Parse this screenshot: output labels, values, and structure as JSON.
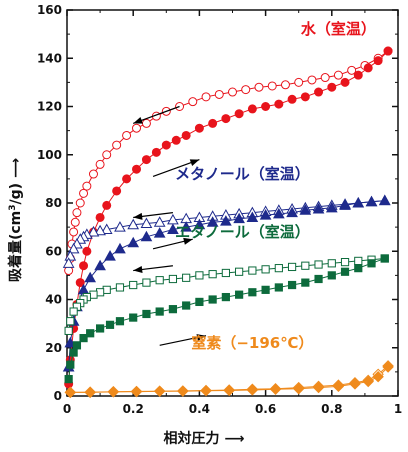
{
  "chart_data": {
    "type": "scatter",
    "xlabel": "相対圧力",
    "ylabel_main": "吸着量",
    "ylabel_unit_pre": "(cm",
    "ylabel_unit_sup": "3",
    "ylabel_unit_post": "/g)",
    "xlim": [
      0,
      1
    ],
    "ylim": [
      0,
      160
    ],
    "xticks": [
      0,
      0.2,
      0.4,
      0.6,
      0.8,
      1
    ],
    "xtick_labels": [
      "0",
      "0.2",
      "0.4",
      "0.6",
      "0.8",
      "1"
    ],
    "yticks": [
      0,
      20,
      40,
      60,
      80,
      100,
      120,
      140,
      160
    ],
    "ytick_labels": [
      "0",
      "20",
      "40",
      "60",
      "80",
      "100",
      "120",
      "140",
      "160"
    ],
    "grid": false,
    "series": [
      {
        "name": "水（室温）",
        "color": "#e8141c",
        "marker": "circle",
        "adsorption_x": [
          0.005,
          0.01,
          0.02,
          0.03,
          0.04,
          0.05,
          0.06,
          0.08,
          0.1,
          0.12,
          0.15,
          0.18,
          0.21,
          0.24,
          0.27,
          0.3,
          0.33,
          0.36,
          0.4,
          0.44,
          0.48,
          0.52,
          0.56,
          0.6,
          0.64,
          0.68,
          0.72,
          0.76,
          0.8,
          0.84,
          0.88,
          0.91,
          0.94,
          0.97
        ],
        "adsorption_y": [
          5,
          15,
          28,
          38,
          47,
          54,
          60,
          68,
          74,
          79,
          85,
          90,
          94,
          98,
          101,
          104,
          106,
          108,
          111,
          113,
          115,
          117,
          119,
          120,
          121,
          123,
          124,
          126,
          128,
          130,
          133,
          136,
          139,
          143
        ],
        "desorption_x": [
          0.97,
          0.94,
          0.9,
          0.86,
          0.82,
          0.78,
          0.74,
          0.7,
          0.66,
          0.62,
          0.58,
          0.54,
          0.5,
          0.46,
          0.42,
          0.38,
          0.34,
          0.3,
          0.27,
          0.24,
          0.21,
          0.18,
          0.15,
          0.12,
          0.1,
          0.08,
          0.06,
          0.05,
          0.04,
          0.03,
          0.025,
          0.02,
          0.015,
          0.01,
          0.005
        ],
        "desorption_y": [
          143,
          140,
          137,
          135,
          133,
          132,
          131,
          130,
          129,
          128.5,
          128,
          127,
          126,
          125,
          124,
          122,
          120,
          118,
          116,
          113,
          111,
          108,
          104,
          100,
          96,
          92,
          87,
          84,
          80,
          76,
          72,
          68,
          63,
          57,
          52
        ]
      },
      {
        "name": "メタノール（室温）",
        "color": "#1e2a8c",
        "marker": "triangle",
        "adsorption_x": [
          0.005,
          0.01,
          0.02,
          0.03,
          0.05,
          0.07,
          0.1,
          0.13,
          0.16,
          0.2,
          0.24,
          0.28,
          0.32,
          0.36,
          0.4,
          0.44,
          0.48,
          0.52,
          0.56,
          0.6,
          0.64,
          0.68,
          0.72,
          0.76,
          0.8,
          0.84,
          0.88,
          0.92,
          0.96
        ],
        "adsorption_y": [
          12,
          22,
          31,
          37,
          44,
          49,
          54,
          58,
          61,
          63.5,
          66,
          67.5,
          69,
          70,
          71,
          72,
          72.5,
          73.5,
          74,
          75,
          75.5,
          76,
          77,
          77.5,
          78,
          79,
          80,
          80.5,
          81
        ],
        "desorption_x": [
          0.96,
          0.92,
          0.88,
          0.84,
          0.8,
          0.76,
          0.72,
          0.68,
          0.64,
          0.6,
          0.56,
          0.52,
          0.48,
          0.44,
          0.4,
          0.36,
          0.32,
          0.28,
          0.24,
          0.2,
          0.16,
          0.12,
          0.1,
          0.08,
          0.06,
          0.05,
          0.04,
          0.03,
          0.02,
          0.01,
          0.005
        ],
        "desorption_y": [
          81,
          80.5,
          80,
          79.5,
          79,
          78.5,
          78,
          77.5,
          77,
          76.5,
          76,
          75.5,
          75,
          74.5,
          74,
          73.5,
          73,
          72,
          71.5,
          71,
          70,
          69,
          68.5,
          68,
          67,
          66,
          65,
          63,
          61,
          58,
          55
        ]
      },
      {
        "name": "エタノール（室温）",
        "color": "#0d6b3c",
        "marker": "square",
        "adsorption_x": [
          0.005,
          0.01,
          0.02,
          0.03,
          0.05,
          0.07,
          0.1,
          0.13,
          0.16,
          0.2,
          0.24,
          0.28,
          0.32,
          0.36,
          0.4,
          0.44,
          0.48,
          0.52,
          0.56,
          0.6,
          0.64,
          0.68,
          0.72,
          0.76,
          0.8,
          0.84,
          0.88,
          0.92,
          0.96
        ],
        "adsorption_y": [
          7,
          13,
          18,
          21,
          24,
          26,
          28,
          29.5,
          31,
          32.5,
          34,
          35,
          36,
          37.5,
          39,
          40,
          41,
          42,
          43,
          44,
          45,
          46,
          47,
          48.5,
          50,
          51.5,
          53,
          55,
          57
        ],
        "desorption_x": [
          0.96,
          0.92,
          0.88,
          0.84,
          0.8,
          0.76,
          0.72,
          0.68,
          0.64,
          0.6,
          0.56,
          0.52,
          0.48,
          0.44,
          0.4,
          0.36,
          0.32,
          0.28,
          0.24,
          0.2,
          0.16,
          0.12,
          0.1,
          0.08,
          0.06,
          0.05,
          0.04,
          0.03,
          0.02,
          0.01,
          0.005
        ],
        "desorption_y": [
          57,
          56.5,
          56,
          55.5,
          55,
          54.5,
          54,
          53.5,
          53,
          52.5,
          52,
          51.5,
          51,
          50.5,
          50,
          49,
          48.5,
          48,
          47,
          46,
          45,
          44,
          43,
          42,
          41,
          40,
          38.5,
          37,
          35,
          31,
          27
        ]
      },
      {
        "name": "窒素（−196℃）",
        "color": "#ef8a1c",
        "marker": "diamond",
        "adsorption_x": [
          0.01,
          0.07,
          0.14,
          0.21,
          0.28,
          0.35,
          0.42,
          0.49,
          0.56,
          0.63,
          0.7,
          0.76,
          0.82,
          0.87,
          0.91,
          0.94,
          0.97
        ],
        "adsorption_y": [
          1.5,
          1.5,
          1.7,
          1.8,
          2,
          2,
          2.2,
          2.3,
          2.5,
          2.8,
          3,
          3.5,
          4,
          5,
          6,
          8,
          12
        ],
        "desorption_x": [
          0.97,
          0.94,
          0.91,
          0.87,
          0.82,
          0.76,
          0.7,
          0.63,
          0.56,
          0.49,
          0.42,
          0.35,
          0.28,
          0.21,
          0.14,
          0.07,
          0.01
        ],
        "desorption_y": [
          12.5,
          9,
          6.5,
          5.5,
          4.5,
          4,
          3.5,
          3,
          2.8,
          2.5,
          2.3,
          2.1,
          2,
          1.9,
          1.8,
          1.6,
          1.5
        ]
      }
    ],
    "annotations": [
      {
        "series": 0,
        "text": "水（室温）",
        "x": 0.82,
        "y": 150
      },
      {
        "series": 1,
        "text": "メタノール（室温）",
        "x": 0.53,
        "y": 90
      },
      {
        "series": 2,
        "text": "エタノール（室温）",
        "x": 0.53,
        "y": 66
      },
      {
        "series": 3,
        "text": "窒素（−196℃）",
        "x": 0.56,
        "y": 20
      }
    ],
    "arrows": [
      {
        "direction": "left",
        "x0": 0.34,
        "x1": 0.2,
        "y0": 120,
        "y1": 113
      },
      {
        "direction": "right",
        "x0": 0.26,
        "x1": 0.4,
        "y0": 91,
        "y1": 98
      },
      {
        "direction": "left",
        "x0": 0.32,
        "x1": 0.2,
        "y0": 76,
        "y1": 74
      },
      {
        "direction": "right",
        "x0": 0.26,
        "x1": 0.38,
        "y0": 61,
        "y1": 65
      },
      {
        "direction": "left",
        "x0": 0.32,
        "x1": 0.2,
        "y0": 54,
        "y1": 52
      },
      {
        "direction": "right",
        "x0": 0.28,
        "x1": 0.42,
        "y0": 21,
        "y1": 25
      }
    ]
  }
}
